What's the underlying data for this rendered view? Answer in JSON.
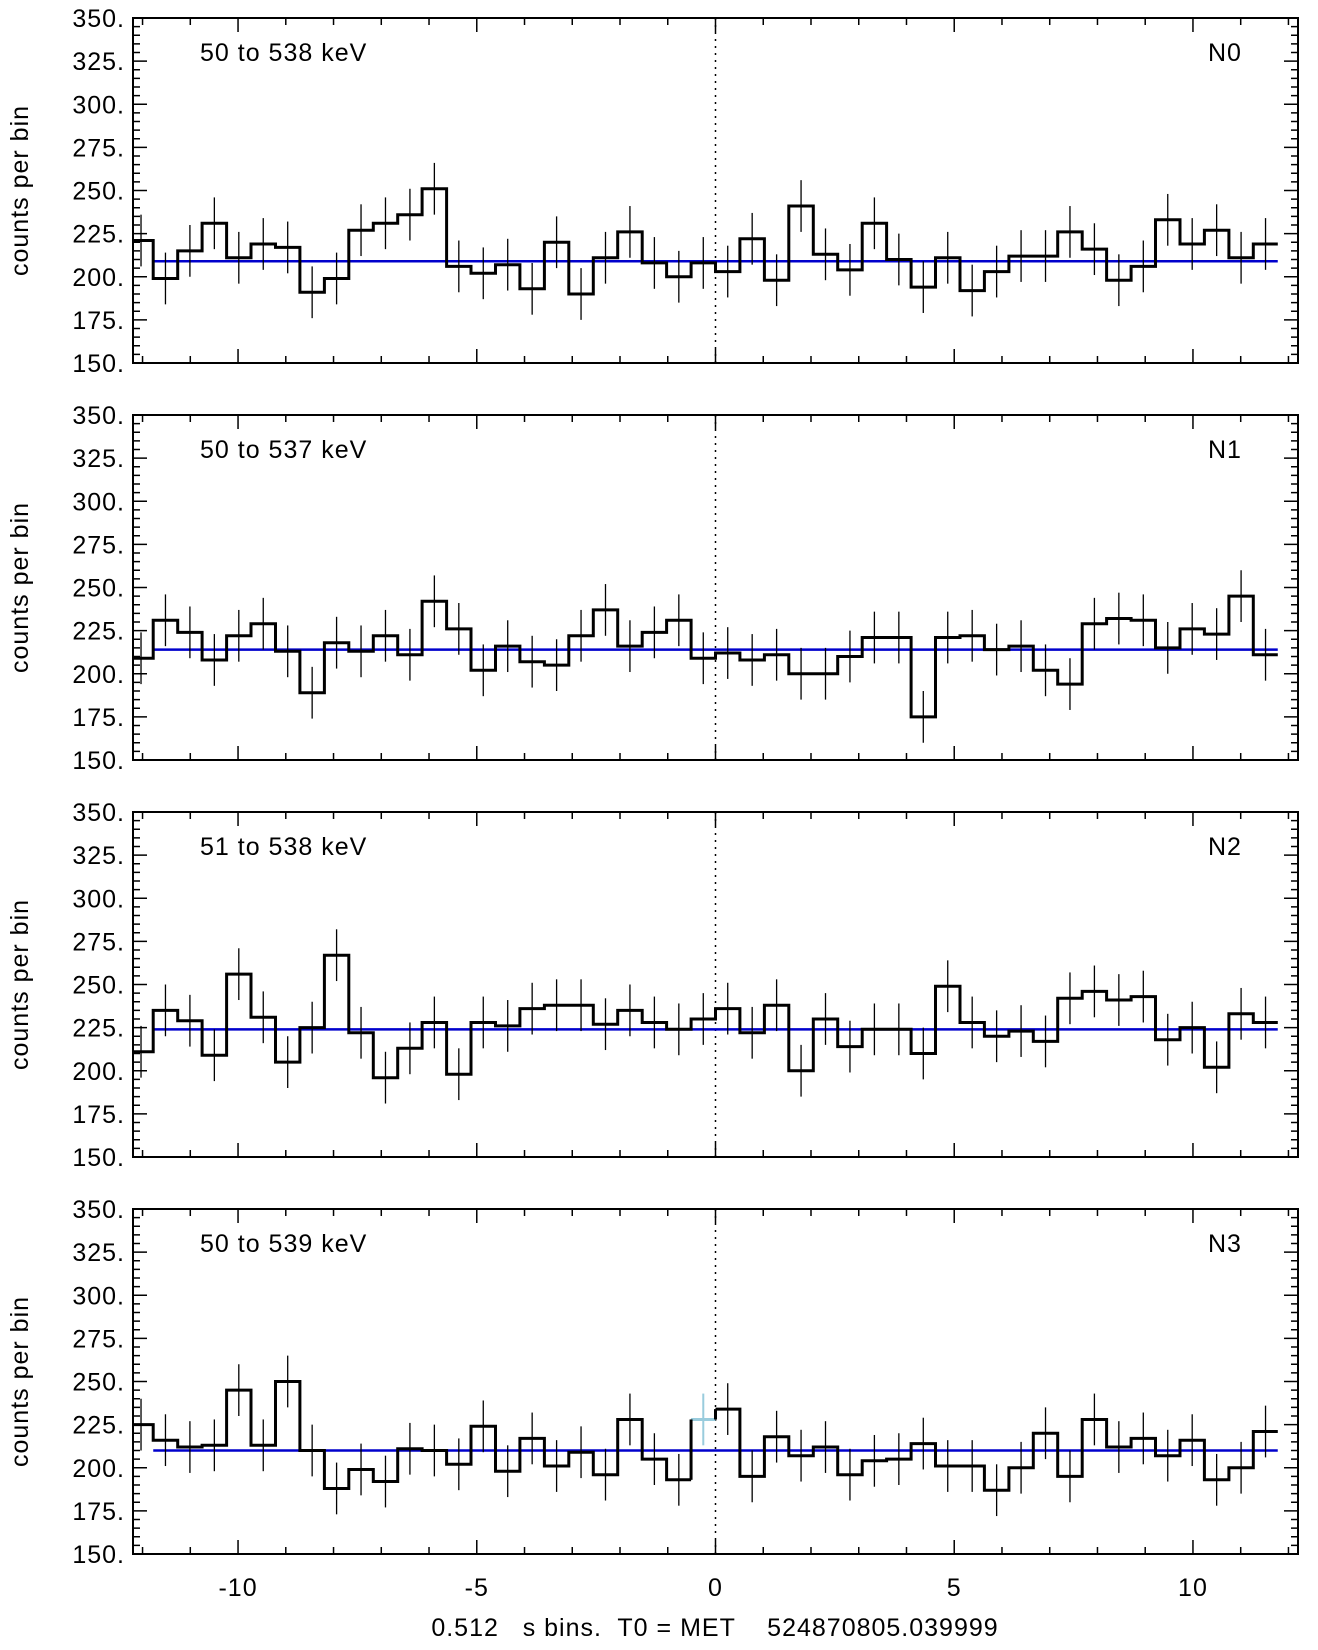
{
  "chart_data": {
    "type": "step",
    "xlabel": "0.512   s bins.  T0 = MET    524870805.039999",
    "ylabel": "counts per bin",
    "xlim": [
      -12.2,
      12.2
    ],
    "ylim": [
      150,
      350
    ],
    "x_ticks": [
      -10,
      -5,
      0,
      5,
      10
    ],
    "y_ticks": [
      150,
      175,
      200,
      225,
      250,
      275,
      300,
      325,
      350
    ],
    "y_tick_labels": [
      "150.",
      "175.",
      "200.",
      "225.",
      "250.",
      "275.",
      "300.",
      "325.",
      "350."
    ],
    "bin_width": 0.512,
    "first_bin_start": -12.288,
    "t0_marker_x": 0,
    "panels": [
      {
        "detector": "N0",
        "energy_range": "50 to 538 keV",
        "background_level": 209,
        "counts": [
          221,
          199,
          215,
          231,
          211,
          219,
          217,
          191,
          199,
          227,
          231,
          236,
          251,
          206,
          202,
          207,
          193,
          220,
          190,
          211,
          226,
          208,
          200,
          208,
          203,
          222,
          198,
          241,
          213,
          204,
          231,
          210,
          194,
          211,
          192,
          203,
          212,
          212,
          226,
          216,
          198,
          206,
          233,
          219,
          227,
          211,
          219
        ]
      },
      {
        "detector": "N1",
        "energy_range": "50 to 537 keV",
        "background_level": 214,
        "counts": [
          209,
          231,
          224,
          208,
          222,
          229,
          213,
          189,
          218,
          213,
          222,
          211,
          242,
          226,
          202,
          216,
          207,
          205,
          222,
          237,
          216,
          224,
          231,
          209,
          212,
          208,
          211,
          200,
          200,
          210,
          221,
          221,
          175,
          221,
          222,
          214,
          216,
          202,
          194,
          229,
          232,
          231,
          215,
          226,
          223,
          245,
          211
        ]
      },
      {
        "detector": "N2",
        "energy_range": "51 to 538 keV",
        "background_level": 224,
        "counts": [
          211,
          235,
          229,
          209,
          256,
          231,
          205,
          225,
          267,
          222,
          196,
          213,
          228,
          198,
          228,
          226,
          236,
          238,
          238,
          227,
          235,
          228,
          224,
          230,
          236,
          222,
          238,
          200,
          230,
          214,
          224,
          224,
          210,
          249,
          228,
          220,
          223,
          217,
          242,
          246,
          241,
          243,
          218,
          225,
          202,
          233,
          228
        ]
      },
      {
        "detector": "N3",
        "energy_range": "50 to 539 keV",
        "background_level": 210,
        "counts": [
          225,
          216,
          212,
          213,
          245,
          213,
          250,
          210,
          188,
          199,
          192,
          211,
          210,
          202,
          224,
          198,
          217,
          201,
          209,
          196,
          228,
          205,
          193,
          228,
          234,
          195,
          218,
          207,
          212,
          196,
          204,
          205,
          214,
          201,
          201,
          187,
          200,
          220,
          195,
          228,
          212,
          217,
          207,
          216,
          193,
          200,
          221
        ],
        "highlight_bin_index": 23
      }
    ]
  },
  "colors": {
    "data_line": "#000000",
    "background_fit": "#0000cc",
    "highlight_bin": "#99ccdd",
    "t0_line": "#000000"
  }
}
